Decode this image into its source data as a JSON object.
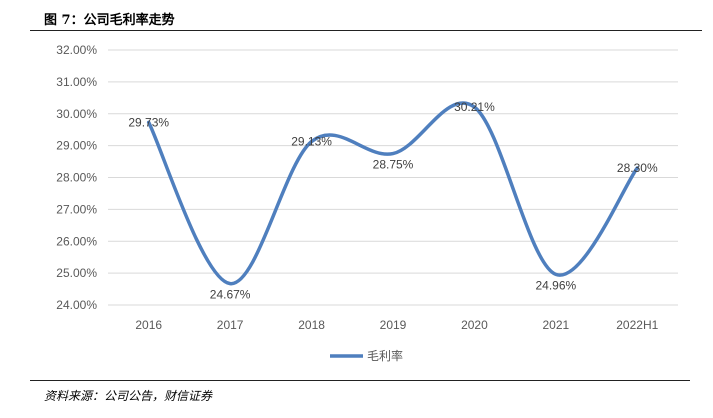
{
  "figure": {
    "title": "图 7：公司毛利率走势",
    "source": "资料来源：公司公告，财信证券"
  },
  "chart_data": {
    "type": "line",
    "categories": [
      "2016",
      "2017",
      "2018",
      "2019",
      "2020",
      "2021",
      "2022H1"
    ],
    "series": [
      {
        "name": "毛利率",
        "values": [
          29.73,
          24.67,
          29.13,
          28.75,
          30.21,
          24.96,
          28.3
        ],
        "labels": [
          "29.73%",
          "24.67%",
          "29.13%",
          "28.75%",
          "30.21%",
          "24.96%",
          "28.30%"
        ],
        "color": "#4F7FBE",
        "smooth": true
      }
    ],
    "yticks": [
      "32.00%",
      "31.00%",
      "30.00%",
      "29.00%",
      "28.00%",
      "27.00%",
      "26.00%",
      "25.00%",
      "24.00%"
    ],
    "ylim": [
      24,
      32
    ],
    "grid": true,
    "legend": "bottom"
  }
}
